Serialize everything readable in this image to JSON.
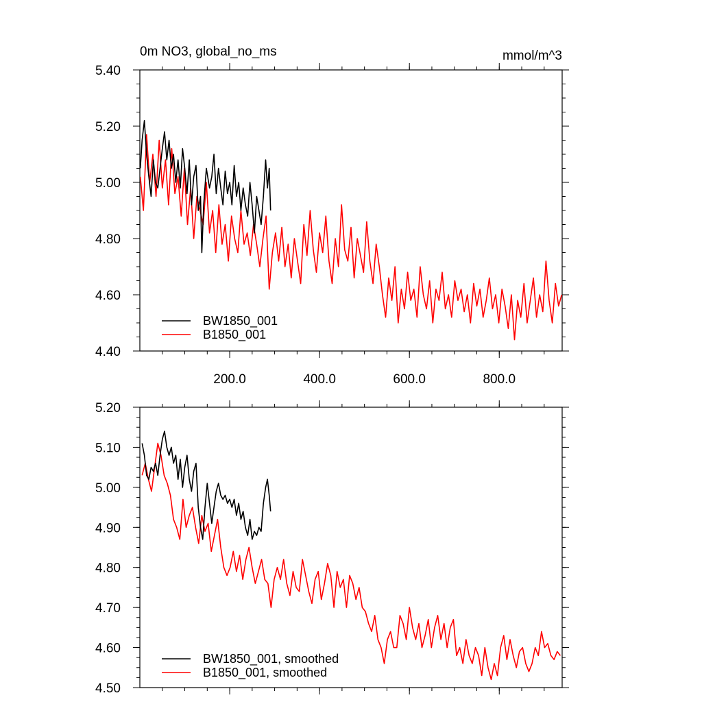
{
  "chart_data": [
    {
      "type": "line",
      "title": "0m NO3, global_no_ms",
      "units": "mmol/m^3",
      "xlim": [
        0,
        940
      ],
      "ylim": [
        4.4,
        5.4
      ],
      "x_ticks": [
        200,
        400,
        600,
        800
      ],
      "x_tick_labels": [
        "200.0",
        "400.0",
        "600.0",
        "800.0"
      ],
      "y_ticks": [
        4.4,
        4.6,
        4.8,
        5.0,
        5.2,
        5.4
      ],
      "y_tick_labels": [
        "4.40",
        "4.60",
        "4.80",
        "5.00",
        "5.20",
        "5.40"
      ],
      "legend_position": "bottom-left",
      "series": [
        {
          "name": "BW1850_001",
          "color": "#000000",
          "x": [
            1,
            5,
            10,
            15,
            20,
            25,
            30,
            35,
            40,
            45,
            50,
            55,
            60,
            65,
            70,
            75,
            80,
            85,
            90,
            95,
            100,
            105,
            110,
            115,
            120,
            125,
            130,
            135,
            138,
            142,
            148,
            155,
            160,
            165,
            170,
            175,
            180,
            185,
            190,
            195,
            200,
            205,
            210,
            215,
            220,
            225,
            230,
            235,
            240,
            245,
            250,
            255,
            260,
            265,
            270,
            275,
            280,
            284,
            288,
            291
          ],
          "values": [
            5.05,
            5.15,
            5.22,
            5.1,
            5.02,
            4.95,
            5.08,
            5.0,
            4.98,
            5.05,
            5.12,
            5.18,
            5.08,
            5.15,
            5.05,
            5.1,
            5.0,
            5.08,
            4.98,
            5.12,
            5.05,
            4.96,
            5.08,
            4.92,
            5.02,
            5.06,
            4.9,
            4.95,
            4.75,
            4.92,
            5.05,
            4.98,
            5.02,
            5.1,
            4.96,
            5.05,
            4.98,
            4.92,
            5.04,
            4.96,
            5.0,
            4.92,
            5.06,
            4.95,
            5.0,
            4.9,
            4.98,
            4.92,
            4.88,
            5.0,
            4.92,
            4.82,
            4.95,
            4.9,
            4.85,
            4.95,
            5.08,
            4.98,
            5.05,
            4.9
          ]
        },
        {
          "name": "B1850_001",
          "color": "#ff0000",
          "x": [
            1,
            8,
            15,
            22,
            29,
            36,
            43,
            50,
            57,
            64,
            71,
            78,
            85,
            92,
            99,
            106,
            113,
            120,
            127,
            134,
            141,
            148,
            155,
            162,
            169,
            176,
            183,
            190,
            197,
            204,
            211,
            218,
            225,
            232,
            239,
            246,
            253,
            260,
            267,
            274,
            281,
            288,
            295,
            302,
            309,
            316,
            323,
            330,
            337,
            344,
            351,
            358,
            365,
            372,
            379,
            386,
            393,
            400,
            407,
            414,
            421,
            428,
            435,
            442,
            449,
            456,
            463,
            470,
            477,
            484,
            491,
            498,
            505,
            512,
            519,
            526,
            533,
            540,
            547,
            554,
            561,
            568,
            575,
            582,
            589,
            596,
            603,
            610,
            617,
            624,
            631,
            638,
            645,
            652,
            659,
            666,
            673,
            680,
            687,
            694,
            701,
            708,
            715,
            722,
            729,
            736,
            743,
            750,
            757,
            764,
            771,
            778,
            785,
            792,
            799,
            806,
            813,
            820,
            827,
            834,
            841,
            848,
            855,
            862,
            869,
            876,
            883,
            890,
            897,
            904,
            911,
            918,
            925,
            932,
            939
          ],
          "values": [
            5.02,
            4.9,
            5.17,
            5.0,
            5.1,
            4.95,
            5.15,
            4.98,
            5.08,
            4.92,
            5.12,
            4.96,
            5.02,
            4.88,
            5.05,
            4.85,
            4.98,
            4.8,
            4.95,
            4.9,
            4.85,
            5.0,
            4.82,
            4.9,
            4.75,
            4.92,
            4.78,
            4.85,
            4.72,
            4.88,
            4.8,
            4.75,
            4.9,
            4.78,
            4.82,
            4.74,
            4.85,
            4.78,
            4.7,
            4.8,
            4.88,
            4.62,
            4.75,
            4.82,
            4.72,
            4.84,
            4.7,
            4.78,
            4.66,
            4.8,
            4.72,
            4.64,
            4.85,
            4.74,
            4.9,
            4.76,
            4.68,
            4.82,
            4.75,
            4.88,
            4.72,
            4.64,
            4.8,
            4.7,
            4.92,
            4.76,
            4.72,
            4.84,
            4.66,
            4.8,
            4.74,
            4.68,
            4.86,
            4.72,
            4.64,
            4.78,
            4.7,
            4.6,
            4.52,
            4.66,
            4.58,
            4.7,
            4.5,
            4.62,
            4.55,
            4.68,
            4.58,
            4.62,
            4.52,
            4.7,
            4.6,
            4.55,
            4.65,
            4.5,
            4.62,
            4.58,
            4.68,
            4.55,
            4.6,
            4.52,
            4.65,
            4.58,
            4.62,
            4.54,
            4.6,
            4.5,
            4.64,
            4.56,
            4.62,
            4.52,
            4.58,
            4.66,
            4.55,
            4.6,
            4.5,
            4.62,
            4.56,
            4.48,
            4.6,
            4.44,
            4.58,
            4.52,
            4.64,
            4.5,
            4.58,
            4.66,
            4.52,
            4.6,
            4.54,
            4.72,
            4.58,
            4.5,
            4.64,
            4.56,
            4.6
          ]
        }
      ]
    },
    {
      "type": "line",
      "title": "",
      "xlim": [
        0,
        940
      ],
      "ylim": [
        4.5,
        5.2
      ],
      "x_ticks": [
        200,
        400,
        600,
        800
      ],
      "x_tick_labels": [],
      "y_ticks": [
        4.5,
        4.6,
        4.7,
        4.8,
        4.9,
        5.0,
        5.1,
        5.2
      ],
      "y_tick_labels": [
        "4.50",
        "4.60",
        "4.70",
        "4.80",
        "4.90",
        "5.00",
        "5.10",
        "5.20"
      ],
      "legend_position": "bottom-left",
      "series": [
        {
          "name": "BW1850_001, smoothed",
          "color": "#000000",
          "x": [
            5,
            10,
            15,
            20,
            25,
            30,
            35,
            40,
            45,
            50,
            55,
            60,
            65,
            70,
            75,
            80,
            85,
            90,
            95,
            100,
            105,
            110,
            115,
            120,
            125,
            130,
            135,
            140,
            145,
            150,
            155,
            160,
            165,
            170,
            175,
            180,
            185,
            190,
            195,
            200,
            205,
            210,
            215,
            220,
            225,
            230,
            235,
            240,
            245,
            250,
            255,
            260,
            265,
            270,
            275,
            280,
            284,
            288,
            291
          ],
          "values": [
            5.11,
            5.08,
            5.03,
            5.02,
            5.05,
            5.04,
            5.06,
            5.03,
            5.08,
            5.12,
            5.14,
            5.1,
            5.08,
            5.1,
            5.06,
            5.08,
            5.02,
            5.07,
            5.0,
            5.05,
            5.08,
            5.02,
            4.99,
            5.04,
            5.06,
            4.95,
            4.9,
            4.87,
            4.95,
            5.01,
            4.96,
            4.91,
            4.95,
            4.99,
            5.01,
            4.98,
            4.97,
            4.98,
            4.96,
            4.97,
            4.95,
            4.97,
            4.93,
            4.96,
            4.92,
            4.94,
            4.9,
            4.88,
            4.92,
            4.87,
            4.89,
            4.88,
            4.9,
            4.89,
            4.96,
            5.0,
            5.02,
            4.98,
            4.94
          ]
        },
        {
          "name": "B1850_001, smoothed",
          "color": "#ff0000",
          "x": [
            5,
            12,
            19,
            26,
            33,
            40,
            47,
            54,
            61,
            68,
            75,
            82,
            89,
            96,
            103,
            110,
            117,
            124,
            131,
            138,
            145,
            152,
            159,
            166,
            173,
            180,
            187,
            194,
            201,
            208,
            215,
            222,
            229,
            236,
            243,
            250,
            257,
            264,
            271,
            278,
            285,
            292,
            299,
            306,
            313,
            320,
            327,
            334,
            341,
            348,
            355,
            362,
            369,
            376,
            383,
            390,
            397,
            404,
            411,
            418,
            425,
            432,
            439,
            446,
            453,
            460,
            467,
            474,
            481,
            488,
            495,
            502,
            509,
            516,
            523,
            530,
            537,
            544,
            551,
            558,
            565,
            572,
            579,
            586,
            593,
            600,
            607,
            614,
            621,
            628,
            635,
            642,
            649,
            656,
            663,
            670,
            677,
            684,
            691,
            698,
            705,
            712,
            719,
            726,
            733,
            740,
            747,
            754,
            761,
            768,
            775,
            782,
            789,
            796,
            803,
            810,
            817,
            824,
            831,
            838,
            845,
            852,
            859,
            866,
            873,
            880,
            887,
            894,
            901,
            908,
            915,
            922,
            929,
            936
          ],
          "values": [
            5.03,
            5.06,
            5.02,
            4.99,
            5.05,
            5.11,
            5.08,
            5.03,
            5.01,
            4.98,
            4.92,
            4.9,
            4.87,
            4.97,
            4.9,
            4.93,
            4.95,
            4.9,
            4.86,
            4.93,
            4.89,
            4.91,
            4.84,
            4.88,
            4.92,
            4.85,
            4.8,
            4.78,
            4.8,
            4.84,
            4.79,
            4.83,
            4.77,
            4.82,
            4.85,
            4.8,
            4.76,
            4.79,
            4.82,
            4.77,
            4.76,
            4.7,
            4.77,
            4.8,
            4.77,
            4.82,
            4.76,
            4.73,
            4.79,
            4.75,
            4.74,
            4.82,
            4.78,
            4.74,
            4.71,
            4.77,
            4.79,
            4.72,
            4.76,
            4.81,
            4.78,
            4.7,
            4.79,
            4.75,
            4.77,
            4.7,
            4.78,
            4.76,
            4.72,
            4.75,
            4.7,
            4.69,
            4.66,
            4.64,
            4.68,
            4.62,
            4.6,
            4.56,
            4.62,
            4.64,
            4.6,
            4.6,
            4.68,
            4.66,
            4.62,
            4.7,
            4.65,
            4.62,
            4.66,
            4.6,
            4.63,
            4.67,
            4.6,
            4.65,
            4.68,
            4.62,
            4.66,
            4.6,
            4.65,
            4.67,
            4.58,
            4.6,
            4.56,
            4.62,
            4.58,
            4.56,
            4.6,
            4.58,
            4.53,
            4.6,
            4.55,
            4.52,
            4.56,
            4.53,
            4.6,
            4.63,
            4.57,
            4.62,
            4.58,
            4.55,
            4.59,
            4.6,
            4.56,
            4.54,
            4.56,
            4.6,
            4.58,
            4.64,
            4.6,
            4.61,
            4.58,
            4.57,
            4.59,
            4.58
          ]
        }
      ]
    }
  ]
}
